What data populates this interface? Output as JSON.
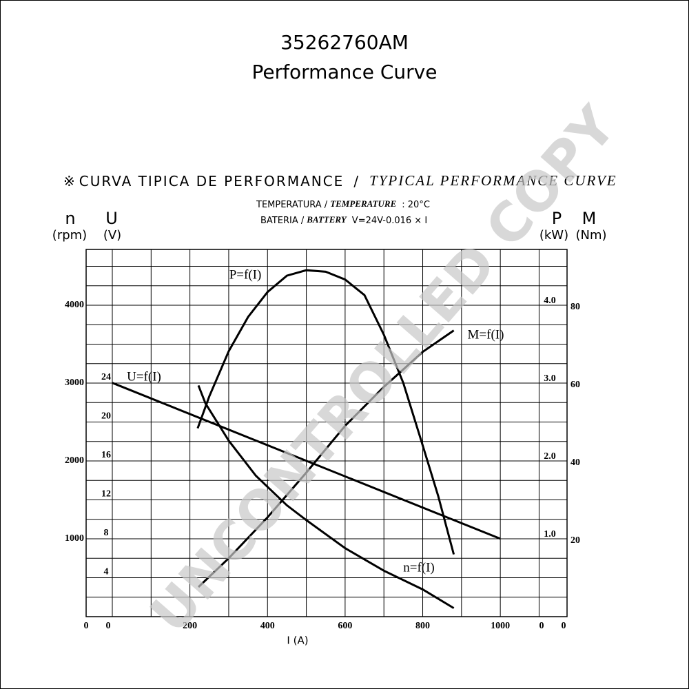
{
  "chart_data": {
    "type": "line",
    "title": "35262760AM",
    "subtitle": "Performance Curve",
    "heading": {
      "symbol": "※",
      "spanish": "CURVA TIPICA DE PERFORMANCE",
      "separator": "/",
      "english": "TYPICAL PERFORMANCE CURVE"
    },
    "temperature": {
      "spanish": "TEMPERATURA /",
      "english": "TEMPERATURE",
      "value": ": 20°C"
    },
    "battery": {
      "spanish": "BATERIA /",
      "english": "BATTERY",
      "value": "V=24V-0.016 × I"
    },
    "watermark": "UNCONTROLLED COPY",
    "xlabel": "I (A)",
    "xlim": [
      -67.5,
      1172
    ],
    "xticks": [
      0,
      200,
      400,
      600,
      800,
      1000
    ],
    "xgrid": [
      0,
      100,
      200,
      300,
      400,
      500,
      600,
      700,
      800,
      900,
      1000,
      1100
    ],
    "ygrid": [
      250,
      500,
      750,
      1000,
      1250,
      1500,
      1750,
      2000,
      2250,
      2500,
      2750,
      3000,
      3250,
      3500,
      3750,
      4000,
      4250,
      4500
    ],
    "y_axes": [
      {
        "name": "n",
        "unit": "(rpm)",
        "ylim": [
          0,
          4717
        ],
        "yticks": [
          0,
          1000,
          2000,
          3000,
          4000
        ]
      },
      {
        "name": "U",
        "unit": "(V)",
        "ylim": [
          0,
          37.7
        ],
        "yticks": [
          4,
          8,
          12,
          16,
          20,
          24
        ]
      },
      {
        "name": "P",
        "unit": "(kW)",
        "ylim": [
          0,
          4.717
        ],
        "yticks": [
          0,
          {
            "value": 1,
            "label": "1.0"
          },
          {
            "value": 2,
            "label": "2.0"
          },
          {
            "value": 3,
            "label": "3.0"
          },
          {
            "value": 4,
            "label": "4.0"
          }
        ]
      },
      {
        "name": "M",
        "unit": "(Nm)",
        "ylim": [
          0,
          94.3
        ],
        "yticks": [
          0,
          20,
          40,
          60,
          80
        ]
      }
    ],
    "series": [
      {
        "name": "n=f(I)",
        "axis": 0,
        "color": "#000000",
        "x": [
          222,
          240,
          300,
          370,
          450,
          500,
          600,
          700,
          800,
          880
        ],
        "values": [
          2970,
          2740,
          2260,
          1810,
          1430,
          1240,
          880,
          590,
          350,
          110
        ]
      },
      {
        "name": "U=f(I)",
        "axis": 1,
        "color": "#000000",
        "x": [
          0,
          1000
        ],
        "values": [
          24,
          8
        ]
      },
      {
        "name": "P=f(I)",
        "axis": 2,
        "color": "#000000",
        "x": [
          220,
          250,
          300,
          350,
          400,
          450,
          500,
          550,
          600,
          650,
          700,
          750,
          800,
          840,
          880
        ],
        "values": [
          2.42,
          2.83,
          3.41,
          3.85,
          4.17,
          4.38,
          4.45,
          4.43,
          4.33,
          4.13,
          3.62,
          3.0,
          2.2,
          1.55,
          0.8
        ]
      },
      {
        "name": "M=f(I)",
        "axis": 3,
        "color": "#000000",
        "x": [
          222,
          300,
          400,
          500,
          600,
          700,
          750,
          800,
          880
        ],
        "values": [
          7.6,
          15,
          25.5,
          37,
          49,
          59,
          63.5,
          68,
          73.5
        ]
      }
    ]
  }
}
